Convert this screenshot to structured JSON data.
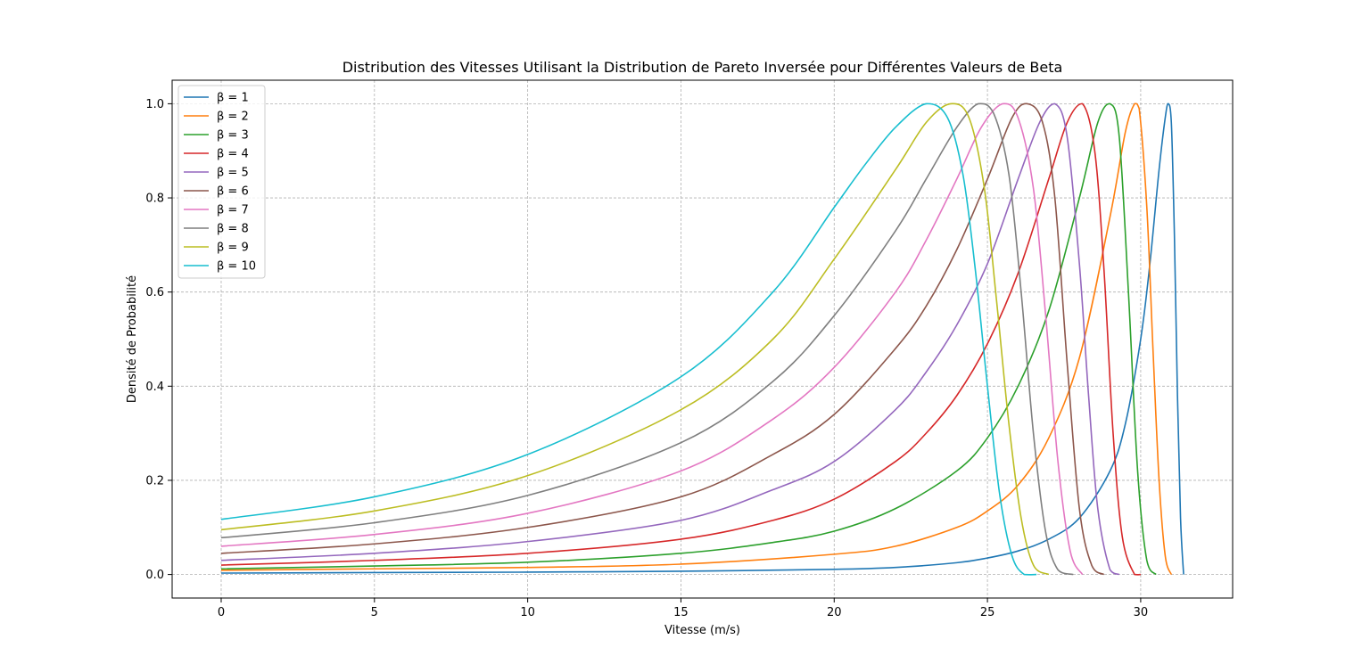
{
  "chart_data": {
    "type": "line",
    "title": "Distribution des Vitesses Utilisant la Distribution de Pareto Inversée pour Différentes Valeurs de Beta",
    "xlabel": "Vitesse (m/s)",
    "ylabel": "Densité de Probabilité",
    "xlim": [
      -1.6,
      33.0
    ],
    "ylim": [
      -0.05,
      1.05
    ],
    "x_ticks": [
      "0",
      "5",
      "10",
      "15",
      "20",
      "25",
      "30"
    ],
    "y_ticks": [
      "0.0",
      "0.2",
      "0.4",
      "0.6",
      "0.8",
      "1.0"
    ],
    "grid": true,
    "legend_position": "top-left",
    "series": [
      {
        "name": "β = 1",
        "color": "#1f77b4",
        "x": [
          0,
          5,
          10,
          15,
          20,
          22,
          24,
          25,
          26,
          27,
          28,
          29,
          29.5,
          30,
          30.3,
          30.6,
          30.8,
          30.9,
          31.0,
          31.1,
          31.2,
          31.3,
          31.4
        ],
        "y": [
          0.003,
          0.004,
          0.005,
          0.007,
          0.011,
          0.015,
          0.025,
          0.035,
          0.05,
          0.075,
          0.12,
          0.22,
          0.32,
          0.5,
          0.66,
          0.86,
          0.97,
          1.0,
          0.96,
          0.72,
          0.38,
          0.12,
          0.0
        ]
      },
      {
        "name": "β = 2",
        "color": "#ff7f0e",
        "x": [
          0,
          5,
          10,
          15,
          20,
          22,
          24,
          25,
          26,
          27,
          28,
          29,
          29.5,
          29.8,
          29.95,
          30.2,
          30.4,
          30.6,
          30.8,
          31.0
        ],
        "y": [
          0.009,
          0.012,
          0.015,
          0.022,
          0.043,
          0.06,
          0.1,
          0.135,
          0.19,
          0.29,
          0.46,
          0.76,
          0.94,
          1.0,
          0.99,
          0.78,
          0.48,
          0.2,
          0.04,
          0.0
        ]
      },
      {
        "name": "β = 3",
        "color": "#2ca02c",
        "x": [
          0,
          5,
          10,
          15,
          18,
          20,
          22,
          24,
          25,
          26,
          27,
          28,
          28.6,
          29.0,
          29.3,
          29.6,
          29.9,
          30.2,
          30.5
        ],
        "y": [
          0.012,
          0.018,
          0.026,
          0.045,
          0.068,
          0.092,
          0.14,
          0.22,
          0.29,
          0.4,
          0.56,
          0.8,
          0.96,
          1.0,
          0.93,
          0.6,
          0.22,
          0.03,
          0.0
        ]
      },
      {
        "name": "β = 4",
        "color": "#d62728",
        "x": [
          0,
          5,
          10,
          15,
          18,
          20,
          22,
          23,
          24,
          25,
          26,
          27,
          27.6,
          28.1,
          28.5,
          28.8,
          29.1,
          29.4,
          29.8,
          30.0
        ],
        "y": [
          0.02,
          0.03,
          0.045,
          0.075,
          0.115,
          0.16,
          0.24,
          0.3,
          0.38,
          0.49,
          0.64,
          0.84,
          0.96,
          1.0,
          0.9,
          0.65,
          0.3,
          0.08,
          0.0,
          0.0
        ]
      },
      {
        "name": "β = 5",
        "color": "#9467bd",
        "x": [
          0,
          5,
          10,
          15,
          18,
          20,
          22,
          23,
          24,
          25,
          26,
          26.7,
          27.2,
          27.6,
          28.0,
          28.3,
          28.6,
          29.0,
          29.3
        ],
        "y": [
          0.03,
          0.045,
          0.07,
          0.115,
          0.18,
          0.24,
          0.35,
          0.43,
          0.53,
          0.66,
          0.84,
          0.96,
          1.0,
          0.93,
          0.66,
          0.38,
          0.14,
          0.01,
          0.0
        ]
      },
      {
        "name": "β = 6",
        "color": "#8c564b",
        "x": [
          0,
          5,
          10,
          15,
          18,
          20,
          22,
          23,
          24,
          25,
          25.8,
          26.3,
          26.8,
          27.2,
          27.6,
          28.0,
          28.4,
          28.8
        ],
        "y": [
          0.045,
          0.065,
          0.1,
          0.165,
          0.255,
          0.34,
          0.48,
          0.57,
          0.69,
          0.84,
          0.97,
          1.0,
          0.96,
          0.8,
          0.45,
          0.14,
          0.02,
          0.0
        ]
      },
      {
        "name": "β = 7",
        "color": "#e377c2",
        "x": [
          0,
          5,
          10,
          15,
          18,
          20,
          22,
          23,
          24,
          24.8,
          25.5,
          26.0,
          26.5,
          26.9,
          27.3,
          27.7,
          28.1
        ],
        "y": [
          0.06,
          0.085,
          0.13,
          0.22,
          0.33,
          0.44,
          0.6,
          0.71,
          0.84,
          0.95,
          1.0,
          0.97,
          0.82,
          0.55,
          0.24,
          0.05,
          0.0
        ]
      },
      {
        "name": "β = 8",
        "color": "#7f7f7f",
        "x": [
          0,
          5,
          10,
          15,
          18,
          20,
          22,
          23,
          24,
          24.7,
          25.2,
          25.7,
          26.1,
          26.5,
          26.9,
          27.3,
          27.8
        ],
        "y": [
          0.078,
          0.11,
          0.168,
          0.28,
          0.41,
          0.55,
          0.73,
          0.84,
          0.95,
          1.0,
          0.98,
          0.85,
          0.6,
          0.3,
          0.09,
          0.01,
          0.0
        ]
      },
      {
        "name": "β = 9",
        "color": "#bcbd22",
        "x": [
          0,
          5,
          10,
          15,
          18,
          20,
          22,
          23,
          23.8,
          24.4,
          24.9,
          25.3,
          25.7,
          26.1,
          26.5,
          27.0
        ],
        "y": [
          0.095,
          0.135,
          0.21,
          0.35,
          0.5,
          0.67,
          0.86,
          0.96,
          1.0,
          0.97,
          0.82,
          0.58,
          0.32,
          0.12,
          0.02,
          0.0
        ]
      },
      {
        "name": "β = 10",
        "color": "#17becf",
        "x": [
          0,
          5,
          10,
          15,
          18,
          20,
          21,
          22,
          23,
          23.7,
          24.2,
          24.6,
          25.0,
          25.4,
          25.8,
          26.2,
          26.6
        ],
        "y": [
          0.117,
          0.165,
          0.255,
          0.42,
          0.6,
          0.78,
          0.87,
          0.95,
          1.0,
          0.97,
          0.85,
          0.65,
          0.4,
          0.17,
          0.04,
          0.0,
          0.0
        ]
      }
    ]
  }
}
